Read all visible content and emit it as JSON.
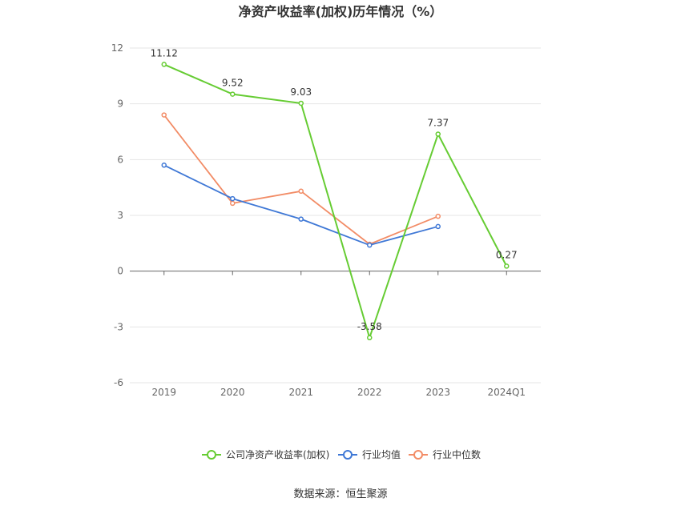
{
  "chart_data": {
    "type": "line",
    "title": "净资产收益率(加权)历年情况（%）",
    "categories": [
      "2019",
      "2020",
      "2021",
      "2022",
      "2023",
      "2024Q1"
    ],
    "ylim": [
      -6,
      12
    ],
    "yticks": [
      12,
      9,
      6,
      3,
      0,
      -3,
      -6
    ],
    "grid": true,
    "legend_position": "bottom",
    "series": [
      {
        "name": "公司净资产收益率(加权)",
        "color": "#66cc33",
        "values": [
          11.12,
          9.52,
          9.03,
          -3.58,
          7.37,
          0.27
        ],
        "labels": [
          "11.12",
          "9.52",
          "9.03",
          "-3.58",
          "7.37",
          "0.27"
        ]
      },
      {
        "name": "行业均值",
        "color": "#3f78d6",
        "values": [
          5.7,
          3.9,
          2.8,
          1.4,
          2.4,
          null
        ]
      },
      {
        "name": "行业中位数",
        "color": "#f28c66",
        "values": [
          8.4,
          3.65,
          4.3,
          1.45,
          2.95,
          null
        ]
      }
    ]
  },
  "source_text": "数据来源：恒生聚源"
}
